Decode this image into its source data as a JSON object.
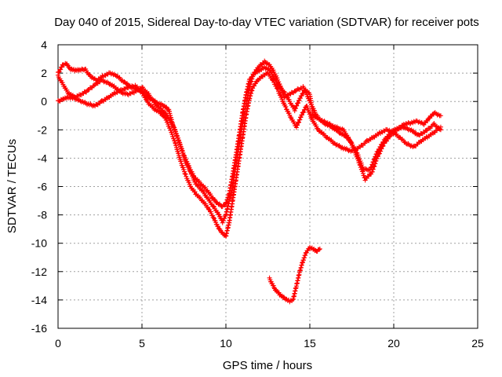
{
  "chart_data": {
    "type": "scatter",
    "title": "Day 040 of 2015, Sidereal Day-to-day VTEC variation (SDTVAR) for receiver pots",
    "xlabel": "GPS time / hours",
    "ylabel": "SDTVAR / TECUs",
    "xlim": [
      0,
      25
    ],
    "ylim": [
      -16,
      4
    ],
    "xticks": [
      "0",
      "5",
      "10",
      "15",
      "20",
      "25"
    ],
    "yticks": [
      "4",
      "2",
      "0",
      "-2",
      "-4",
      "-6",
      "-8",
      "-10",
      "-12",
      "-14",
      "-16"
    ],
    "grid": true,
    "marker": "+",
    "color": "#ff0000",
    "series": [
      {
        "name": "track-a",
        "points": [
          [
            0,
            2.0
          ],
          [
            0.3,
            2.6
          ],
          [
            0.5,
            2.7
          ],
          [
            0.7,
            2.3
          ],
          [
            1.0,
            2.2
          ],
          [
            1.3,
            2.2
          ],
          [
            1.6,
            2.3
          ],
          [
            1.9,
            1.8
          ],
          [
            2.3,
            1.5
          ],
          [
            2.7,
            1.8
          ],
          [
            3.1,
            2.0
          ],
          [
            3.5,
            1.8
          ],
          [
            4.0,
            1.3
          ],
          [
            4.4,
            1.0
          ],
          [
            4.8,
            0.8
          ],
          [
            5.2,
            0.5
          ],
          [
            5.5,
            0.2
          ],
          [
            5.9,
            -0.1
          ],
          [
            6.3,
            -0.3
          ],
          [
            6.6,
            -0.6
          ],
          [
            6.8,
            -1.5
          ],
          [
            7.1,
            -2.5
          ],
          [
            7.4,
            -3.5
          ],
          [
            7.6,
            -4.3
          ],
          [
            7.9,
            -5.0
          ],
          [
            8.2,
            -5.8
          ],
          [
            8.6,
            -6.3
          ],
          [
            9.0,
            -7.0
          ],
          [
            9.3,
            -7.5
          ],
          [
            9.6,
            -8.0
          ],
          [
            9.8,
            -8.5
          ],
          [
            10.0,
            -8.0
          ],
          [
            10.2,
            -7.0
          ],
          [
            10.4,
            -6.0
          ],
          [
            10.6,
            -4.5
          ],
          [
            10.8,
            -3.0
          ],
          [
            11.0,
            -1.5
          ],
          [
            11.2,
            -0.3
          ],
          [
            11.4,
            1.0
          ],
          [
            11.6,
            1.8
          ],
          [
            11.8,
            2.2
          ],
          [
            12.0,
            2.5
          ],
          [
            12.3,
            2.8
          ],
          [
            12.6,
            2.6
          ],
          [
            12.9,
            2.0
          ],
          [
            13.2,
            1.2
          ],
          [
            13.5,
            0.3
          ],
          [
            13.8,
            0.5
          ],
          [
            14.2,
            0.8
          ],
          [
            14.6,
            1.0
          ],
          [
            15.0,
            0.5
          ],
          [
            15.2,
            -1.0
          ],
          [
            15.6,
            -1.3
          ],
          [
            16.0,
            -1.5
          ],
          [
            16.5,
            -1.8
          ],
          [
            17.0,
            -2.0
          ],
          [
            17.5,
            -3.0
          ],
          [
            18.0,
            -4.5
          ],
          [
            18.3,
            -5.5
          ],
          [
            18.7,
            -5.0
          ],
          [
            19.0,
            -4.0
          ],
          [
            19.4,
            -3.0
          ],
          [
            19.8,
            -2.4
          ],
          [
            20.2,
            -2.0
          ],
          [
            20.6,
            -1.6
          ],
          [
            21.0,
            -1.5
          ],
          [
            21.4,
            -1.4
          ],
          [
            21.8,
            -1.6
          ],
          [
            22.1,
            -1.2
          ],
          [
            22.4,
            -0.8
          ],
          [
            22.8,
            -1.0
          ]
        ]
      },
      {
        "name": "track-b",
        "points": [
          [
            0,
            0.0
          ],
          [
            0.3,
            0.2
          ],
          [
            0.6,
            0.3
          ],
          [
            1.0,
            0.2
          ],
          [
            1.4,
            0.0
          ],
          [
            1.8,
            -0.2
          ],
          [
            2.2,
            -0.3
          ],
          [
            2.6,
            0.0
          ],
          [
            3.0,
            0.3
          ],
          [
            3.4,
            0.6
          ],
          [
            3.8,
            0.8
          ],
          [
            4.2,
            1.0
          ],
          [
            4.6,
            1.1
          ],
          [
            5.0,
            0.7
          ],
          [
            5.3,
            0.0
          ],
          [
            5.7,
            -0.5
          ],
          [
            6.1,
            -0.8
          ],
          [
            6.4,
            -1.2
          ],
          [
            6.7,
            -2.0
          ],
          [
            7.0,
            -3.0
          ],
          [
            7.3,
            -4.2
          ],
          [
            7.6,
            -5.2
          ],
          [
            7.9,
            -6.0
          ],
          [
            8.2,
            -6.5
          ],
          [
            8.6,
            -7.0
          ],
          [
            9.0,
            -7.6
          ],
          [
            9.3,
            -8.3
          ],
          [
            9.6,
            -9.0
          ],
          [
            9.8,
            -9.3
          ],
          [
            10.0,
            -9.5
          ],
          [
            10.2,
            -8.5
          ],
          [
            10.4,
            -7.0
          ],
          [
            10.6,
            -5.5
          ],
          [
            10.8,
            -4.0
          ],
          [
            11.0,
            -2.5
          ],
          [
            11.2,
            -1.0
          ],
          [
            11.4,
            0.2
          ],
          [
            11.6,
            1.0
          ],
          [
            11.9,
            1.5
          ],
          [
            12.2,
            1.8
          ],
          [
            12.5,
            2.0
          ],
          [
            12.8,
            1.5
          ],
          [
            13.1,
            0.8
          ],
          [
            13.4,
            0.0
          ],
          [
            13.6,
            -0.5
          ],
          [
            13.9,
            -1.2
          ],
          [
            14.2,
            -1.8
          ],
          [
            14.5,
            -1.0
          ],
          [
            14.8,
            -0.3
          ],
          [
            15.1,
            -1.2
          ],
          [
            15.5,
            -2.0
          ],
          [
            16.0,
            -2.5
          ],
          [
            16.5,
            -3.0
          ],
          [
            17.0,
            -3.3
          ],
          [
            17.5,
            -3.5
          ],
          [
            18.0,
            -3.2
          ],
          [
            18.4,
            -2.8
          ],
          [
            18.8,
            -2.5
          ],
          [
            19.2,
            -2.2
          ],
          [
            19.6,
            -2.0
          ],
          [
            20.0,
            -2.2
          ],
          [
            20.4,
            -2.6
          ],
          [
            20.8,
            -3.0
          ],
          [
            21.2,
            -3.2
          ],
          [
            21.6,
            -2.8
          ],
          [
            22.0,
            -2.5
          ],
          [
            22.4,
            -2.2
          ],
          [
            22.8,
            -1.8
          ]
        ]
      },
      {
        "name": "track-c",
        "points": [
          [
            0,
            1.8
          ],
          [
            0.3,
            1.2
          ],
          [
            0.6,
            0.6
          ],
          [
            1.0,
            0.3
          ],
          [
            1.4,
            0.5
          ],
          [
            1.8,
            0.8
          ],
          [
            2.2,
            1.2
          ],
          [
            2.6,
            1.5
          ],
          [
            3.0,
            1.3
          ],
          [
            3.4,
            1.0
          ],
          [
            3.8,
            0.6
          ],
          [
            4.2,
            0.5
          ],
          [
            4.6,
            0.7
          ],
          [
            5.0,
            1.0
          ],
          [
            5.4,
            0.5
          ],
          [
            5.8,
            -0.2
          ],
          [
            6.2,
            -0.6
          ],
          [
            6.5,
            -1.0
          ],
          [
            6.9,
            -1.8
          ],
          [
            7.2,
            -2.8
          ],
          [
            7.5,
            -3.8
          ],
          [
            7.8,
            -4.6
          ],
          [
            8.1,
            -5.3
          ],
          [
            8.5,
            -5.8
          ],
          [
            8.9,
            -6.3
          ],
          [
            9.2,
            -6.8
          ],
          [
            9.5,
            -7.2
          ],
          [
            9.8,
            -7.4
          ],
          [
            10.0,
            -7.2
          ],
          [
            10.2,
            -6.5
          ],
          [
            10.4,
            -5.2
          ],
          [
            10.6,
            -3.8
          ],
          [
            10.8,
            -2.3
          ],
          [
            11.0,
            -0.8
          ],
          [
            11.2,
            0.5
          ],
          [
            11.4,
            1.5
          ],
          [
            11.7,
            2.0
          ],
          [
            12.0,
            2.2
          ],
          [
            12.3,
            2.4
          ],
          [
            12.6,
            2.2
          ],
          [
            12.9,
            1.6
          ],
          [
            13.2,
            1.0
          ],
          [
            13.5,
            0.6
          ],
          [
            13.8,
            0.0
          ],
          [
            14.1,
            -0.6
          ],
          [
            14.4,
            0.2
          ],
          [
            14.7,
            0.8
          ],
          [
            15.0,
            0.0
          ],
          [
            15.4,
            -1.0
          ],
          [
            15.8,
            -1.5
          ],
          [
            16.3,
            -1.8
          ],
          [
            16.8,
            -2.2
          ],
          [
            17.3,
            -2.6
          ],
          [
            17.8,
            -3.6
          ],
          [
            18.2,
            -4.8
          ],
          [
            18.6,
            -4.8
          ],
          [
            19.0,
            -3.6
          ],
          [
            19.5,
            -2.6
          ],
          [
            20.0,
            -2.0
          ],
          [
            20.5,
            -1.8
          ],
          [
            21.0,
            -2.0
          ],
          [
            21.5,
            -2.4
          ],
          [
            22.0,
            -2.0
          ],
          [
            22.4,
            -1.6
          ],
          [
            22.8,
            -2.0
          ]
        ]
      },
      {
        "name": "track-d",
        "points": [
          [
            12.6,
            -12.5
          ],
          [
            12.9,
            -13.2
          ],
          [
            13.2,
            -13.6
          ],
          [
            13.5,
            -13.9
          ],
          [
            13.8,
            -14.1
          ],
          [
            14.0,
            -14.0
          ],
          [
            14.2,
            -13.0
          ],
          [
            14.4,
            -12.0
          ],
          [
            14.6,
            -11.2
          ],
          [
            14.8,
            -10.6
          ],
          [
            15.0,
            -10.3
          ],
          [
            15.2,
            -10.4
          ],
          [
            15.4,
            -10.6
          ],
          [
            15.6,
            -10.4
          ]
        ]
      }
    ]
  }
}
